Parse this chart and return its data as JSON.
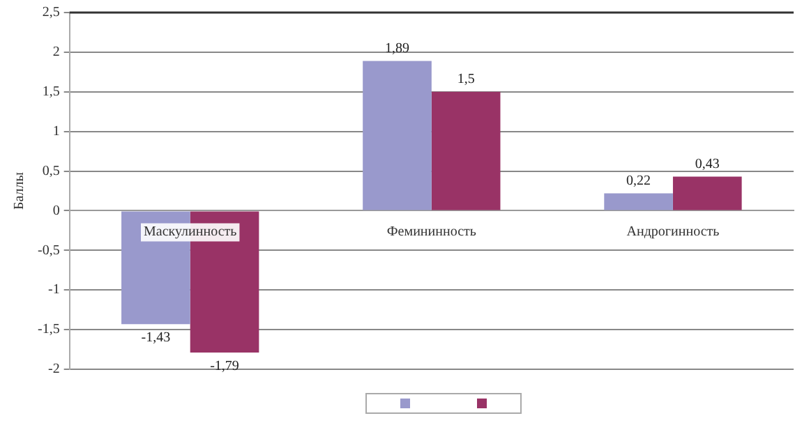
{
  "chart_data": {
    "type": "bar",
    "ylabel": "Баллы",
    "categories": [
      "Маскулинность",
      "Фемининность",
      "Андрогинность"
    ],
    "series": [
      {
        "color": "#9999cc",
        "values": [
          -1.43,
          1.89,
          0.22
        ],
        "value_labels": [
          "-1,43",
          "1,89",
          "0,22"
        ]
      },
      {
        "color": "#993366",
        "values": [
          -1.79,
          1.5,
          0.43
        ],
        "value_labels": [
          "-1,79",
          "1,5",
          "0,43"
        ]
      }
    ],
    "ylim": [
      -2,
      2.5
    ],
    "yticks": [
      {
        "value": -2,
        "label": "-2"
      },
      {
        "value": -1.5,
        "label": "-1,5"
      },
      {
        "value": -1,
        "label": "-1"
      },
      {
        "value": -0.5,
        "label": "-0,5"
      },
      {
        "value": 0,
        "label": "0"
      },
      {
        "value": 0.5,
        "label": "0,5"
      },
      {
        "value": 1,
        "label": "1"
      },
      {
        "value": 1.5,
        "label": "1,5"
      },
      {
        "value": 2,
        "label": "2"
      },
      {
        "value": 2.5,
        "label": "2,5"
      }
    ],
    "grid": "y"
  }
}
